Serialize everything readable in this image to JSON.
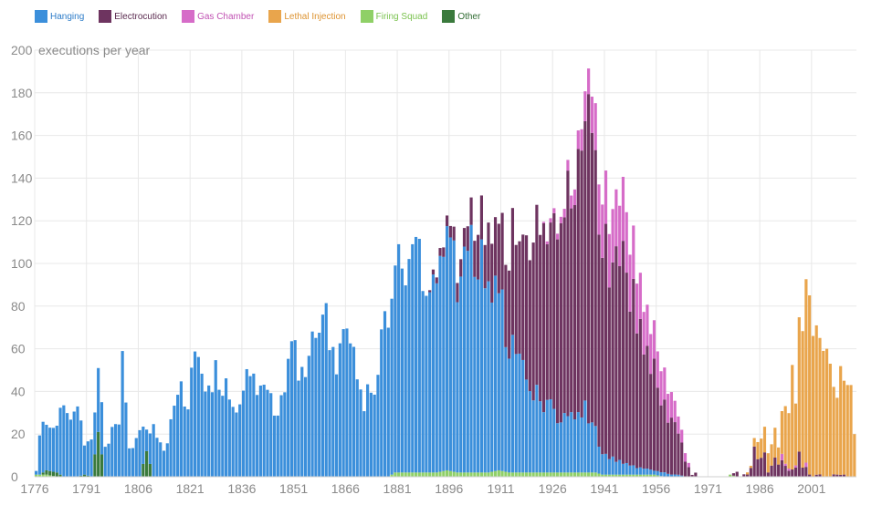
{
  "chart_data": {
    "type": "bar",
    "stacked": true,
    "title": "",
    "ylabel": "executions per year",
    "xlabel": "",
    "ylim": [
      0,
      200
    ],
    "y_ticks": [
      0,
      20,
      40,
      60,
      80,
      100,
      120,
      140,
      160,
      180,
      200
    ],
    "x_ticks": [
      "1776",
      "1791",
      "1806",
      "1821",
      "1836",
      "1851",
      "1866",
      "1881",
      "1896",
      "1911",
      "1926",
      "1941",
      "1956",
      "1971",
      "1986",
      "2001"
    ],
    "x_range": [
      1776,
      2013
    ],
    "legend_position": "top-left",
    "series": [
      {
        "name": "Hanging",
        "color": "#3b8fdb",
        "text_color": "#2b7bc8"
      },
      {
        "name": "Electrocution",
        "color": "#6e3460",
        "text_color": "#5a2a4f"
      },
      {
        "name": "Gas Chamber",
        "color": "#d66cc8",
        "text_color": "#c152b3"
      },
      {
        "name": "Lethal Injection",
        "color": "#e9a54c",
        "text_color": "#dd9331"
      },
      {
        "name": "Firing Squad",
        "color": "#8fd067",
        "text_color": "#7ac24e"
      },
      {
        "name": "Other",
        "color": "#3a7a3c",
        "text_color": "#2f6b31"
      }
    ],
    "keyframes": [
      {
        "year": 1776,
        "Hanging": 2,
        "Firing Squad": 1
      },
      {
        "year": 1777,
        "Hanging": 20,
        "Firing Squad": 1
      },
      {
        "year": 1779,
        "Hanging": 22,
        "Firing Squad": 1,
        "Other": 2
      },
      {
        "year": 1782,
        "Hanging": 25,
        "Other": 2
      },
      {
        "year": 1784,
        "Hanging": 40
      },
      {
        "year": 1786,
        "Hanging": 24
      },
      {
        "year": 1788,
        "Hanging": 33
      },
      {
        "year": 1790,
        "Hanging": 14,
        "Other": 1
      },
      {
        "year": 1792,
        "Hanging": 18
      },
      {
        "year": 1794,
        "Hanging": 28,
        "Other": 21
      },
      {
        "year": 1796,
        "Hanging": 14
      },
      {
        "year": 1798,
        "Hanging": 22
      },
      {
        "year": 1800,
        "Hanging": 22
      },
      {
        "year": 1801,
        "Hanging": 54
      },
      {
        "year": 1803,
        "Hanging": 12
      },
      {
        "year": 1806,
        "Hanging": 20
      },
      {
        "year": 1808,
        "Hanging": 12,
        "Other": 12
      },
      {
        "year": 1810,
        "Hanging": 22
      },
      {
        "year": 1813,
        "Hanging": 12
      },
      {
        "year": 1816,
        "Hanging": 30
      },
      {
        "year": 1818,
        "Hanging": 40
      },
      {
        "year": 1820,
        "Hanging": 36
      },
      {
        "year": 1822,
        "Hanging": 53
      },
      {
        "year": 1825,
        "Hanging": 43
      },
      {
        "year": 1828,
        "Hanging": 48
      },
      {
        "year": 1831,
        "Hanging": 45
      },
      {
        "year": 1834,
        "Hanging": 30
      },
      {
        "year": 1837,
        "Hanging": 48
      },
      {
        "year": 1840,
        "Hanging": 38
      },
      {
        "year": 1843,
        "Hanging": 42
      },
      {
        "year": 1846,
        "Hanging": 30
      },
      {
        "year": 1850,
        "Hanging": 60
      },
      {
        "year": 1853,
        "Hanging": 50
      },
      {
        "year": 1856,
        "Hanging": 60
      },
      {
        "year": 1860,
        "Hanging": 72
      },
      {
        "year": 1863,
        "Hanging": 50
      },
      {
        "year": 1866,
        "Hanging": 70
      },
      {
        "year": 1870,
        "Hanging": 35
      },
      {
        "year": 1874,
        "Hanging": 40
      },
      {
        "year": 1878,
        "Hanging": 80
      },
      {
        "year": 1880,
        "Hanging": 100,
        "Firing Squad": 2
      },
      {
        "year": 1883,
        "Hanging": 95,
        "Firing Squad": 2
      },
      {
        "year": 1886,
        "Hanging": 110,
        "Firing Squad": 2
      },
      {
        "year": 1889,
        "Hanging": 85,
        "Firing Squad": 2
      },
      {
        "year": 1892,
        "Hanging": 90,
        "Electrocution": 3,
        "Firing Squad": 2
      },
      {
        "year": 1895,
        "Hanging": 110,
        "Electrocution": 5,
        "Firing Squad": 3
      },
      {
        "year": 1898,
        "Hanging": 85,
        "Electrocution": 8,
        "Firing Squad": 2
      },
      {
        "year": 1901,
        "Hanging": 108,
        "Electrocution": 10,
        "Firing Squad": 2
      },
      {
        "year": 1904,
        "Hanging": 100,
        "Electrocution": 20,
        "Firing Squad": 2
      },
      {
        "year": 1907,
        "Hanging": 95,
        "Electrocution": 25,
        "Firing Squad": 2
      },
      {
        "year": 1910,
        "Hanging": 80,
        "Electrocution": 35,
        "Firing Squad": 3
      },
      {
        "year": 1913,
        "Hanging": 60,
        "Electrocution": 50,
        "Firing Squad": 2
      },
      {
        "year": 1916,
        "Hanging": 50,
        "Electrocution": 60,
        "Firing Squad": 2
      },
      {
        "year": 1919,
        "Hanging": 40,
        "Electrocution": 65,
        "Firing Squad": 2
      },
      {
        "year": 1922,
        "Hanging": 35,
        "Electrocution": 80,
        "Firing Squad": 2
      },
      {
        "year": 1925,
        "Hanging": 30,
        "Electrocution": 90,
        "Gas Chamber": 2,
        "Firing Squad": 2
      },
      {
        "year": 1928,
        "Hanging": 25,
        "Electrocution": 100,
        "Gas Chamber": 3,
        "Firing Squad": 2
      },
      {
        "year": 1931,
        "Hanging": 25,
        "Electrocution": 110,
        "Gas Chamber": 6,
        "Firing Squad": 2
      },
      {
        "year": 1934,
        "Hanging": 25,
        "Electrocution": 130,
        "Gas Chamber": 10,
        "Firing Squad": 2
      },
      {
        "year": 1935,
        "Hanging": 30,
        "Electrocution": 140,
        "Gas Chamber": 14,
        "Firing Squad": 2
      },
      {
        "year": 1936,
        "Hanging": 25,
        "Electrocution": 135,
        "Gas Chamber": 12,
        "Firing Squad": 2
      },
      {
        "year": 1938,
        "Hanging": 20,
        "Electrocution": 125,
        "Gas Chamber": 22,
        "Firing Squad": 2
      },
      {
        "year": 1940,
        "Hanging": 10,
        "Electrocution": 100,
        "Gas Chamber": 25,
        "Firing Squad": 1
      },
      {
        "year": 1943,
        "Hanging": 8,
        "Electrocution": 95,
        "Gas Chamber": 25,
        "Firing Squad": 1
      },
      {
        "year": 1946,
        "Hanging": 5,
        "Electrocution": 90,
        "Gas Chamber": 30,
        "Firing Squad": 1
      },
      {
        "year": 1949,
        "Hanging": 4,
        "Electrocution": 75,
        "Gas Chamber": 25,
        "Firing Squad": 1
      },
      {
        "year": 1952,
        "Hanging": 3,
        "Electrocution": 55,
        "Gas Chamber": 20,
        "Firing Squad": 1
      },
      {
        "year": 1955,
        "Hanging": 2,
        "Electrocution": 50,
        "Gas Chamber": 18,
        "Firing Squad": 1
      },
      {
        "year": 1958,
        "Hanging": 2,
        "Electrocution": 30,
        "Gas Chamber": 15
      },
      {
        "year": 1960,
        "Hanging": 1,
        "Electrocution": 25,
        "Gas Chamber": 12
      },
      {
        "year": 1962,
        "Hanging": 1,
        "Electrocution": 20,
        "Gas Chamber": 8
      },
      {
        "year": 1964,
        "Electrocution": 8,
        "Gas Chamber": 4
      },
      {
        "year": 1966,
        "Electrocution": 1
      },
      {
        "year": 1967,
        "Electrocution": 2
      },
      {
        "year": 1968
      },
      {
        "year": 1976
      },
      {
        "year": 1977,
        "Firing Squad": 1
      },
      {
        "year": 1979,
        "Electrocution": 2
      },
      {
        "year": 1980
      },
      {
        "year": 1981,
        "Electrocution": 1
      },
      {
        "year": 1982,
        "Lethal Injection": 1,
        "Electrocution": 1
      },
      {
        "year": 1983,
        "Lethal Injection": 1,
        "Electrocution": 4
      },
      {
        "year": 1984,
        "Lethal Injection": 4,
        "Electrocution": 17
      },
      {
        "year": 1985,
        "Lethal Injection": 8,
        "Electrocution": 10
      },
      {
        "year": 1986,
        "Lethal Injection": 9,
        "Electrocution": 9
      },
      {
        "year": 1987,
        "Lethal Injection": 12,
        "Electrocution": 13
      },
      {
        "year": 1988,
        "Lethal Injection": 9,
        "Electrocution": 2
      },
      {
        "year": 1989,
        "Lethal Injection": 10,
        "Electrocution": 5
      },
      {
        "year": 1990,
        "Lethal Injection": 14,
        "Electrocution": 8
      },
      {
        "year": 1991,
        "Lethal Injection": 8,
        "Electrocution": 5
      },
      {
        "year": 1992,
        "Lethal Injection": 20,
        "Electrocution": 8,
        "Gas Chamber": 3
      },
      {
        "year": 1993,
        "Lethal Injection": 27,
        "Electrocution": 6,
        "Gas Chamber": 1
      },
      {
        "year": 1994,
        "Lethal Injection": 26,
        "Electrocution": 3,
        "Gas Chamber": 1
      },
      {
        "year": 1995,
        "Lethal Injection": 49,
        "Electrocution": 3
      },
      {
        "year": 1996,
        "Lethal Injection": 29,
        "Electrocution": 5,
        "Gas Chamber": 1
      },
      {
        "year": 1997,
        "Lethal Injection": 63,
        "Electrocution": 11
      },
      {
        "year": 1998,
        "Lethal Injection": 64,
        "Electrocution": 5
      },
      {
        "year": 1999,
        "Lethal Injection": 86,
        "Electrocution": 4,
        "Gas Chamber": 2
      },
      {
        "year": 2000,
        "Lethal Injection": 84,
        "Electrocution": 1
      },
      {
        "year": 2001,
        "Lethal Injection": 66
      },
      {
        "year": 2002,
        "Lethal Injection": 70,
        "Electrocution": 1
      },
      {
        "year": 2003,
        "Lethal Injection": 64,
        "Electrocution": 1
      },
      {
        "year": 2004,
        "Lethal Injection": 59
      },
      {
        "year": 2005,
        "Lethal Injection": 60
      },
      {
        "year": 2006,
        "Lethal Injection": 53
      },
      {
        "year": 2007,
        "Lethal Injection": 41,
        "Electrocution": 1
      },
      {
        "year": 2008,
        "Lethal Injection": 36,
        "Electrocution": 1
      },
      {
        "year": 2009,
        "Lethal Injection": 51,
        "Electrocution": 1
      },
      {
        "year": 2010,
        "Lethal Injection": 44,
        "Electrocution": 1
      },
      {
        "year": 2011,
        "Lethal Injection": 43
      },
      {
        "year": 2012,
        "Lethal Injection": 43
      },
      {
        "year": 2013,
        "Lethal Injection": 20
      }
    ]
  }
}
